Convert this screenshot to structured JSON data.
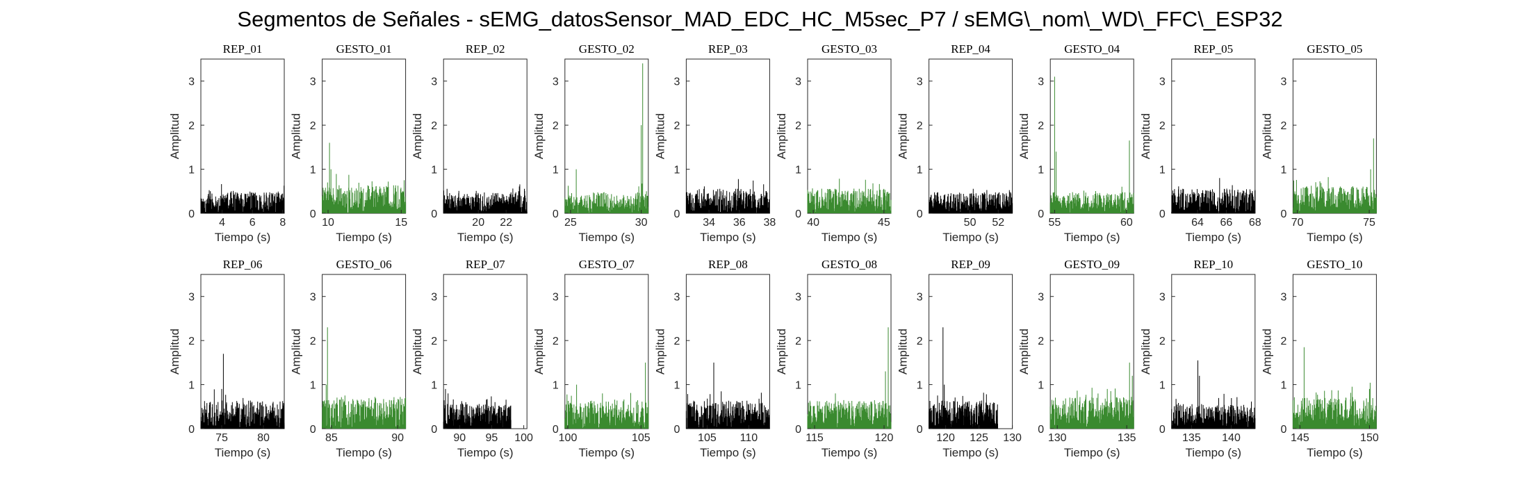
{
  "title": "Segmentos de Señales - sEMG_datosSensor_MAD_EDC_HC_M5sec_P7 / sEMG\\_nom\\_WD\\_FFC\\_ESP32",
  "colors": {
    "rep": "#000000",
    "gesto": "#3a8a2f",
    "axis": "#262626"
  },
  "chart_data": [
    {
      "type": "line",
      "title": "REP_01",
      "xlabel": "Tiempo (s)",
      "ylabel": "Amplitud",
      "xlim": [
        2.6,
        8.1
      ],
      "ylim": [
        0,
        3.5
      ],
      "xticks": [
        4,
        6,
        8
      ],
      "yticks": [
        0,
        1,
        2,
        3
      ],
      "color": "rep",
      "x_range": [
        2.6,
        8.1
      ],
      "base": 0.3,
      "spikes": []
    },
    {
      "type": "line",
      "title": "GESTO_01",
      "xlabel": "Tiempo (s)",
      "ylabel": "Amplitud",
      "xlim": [
        9.6,
        15.3
      ],
      "ylim": [
        0,
        3.5
      ],
      "xticks": [
        10,
        15
      ],
      "yticks": [
        0,
        1,
        2,
        3
      ],
      "color": "gesto",
      "x_range": [
        9.6,
        15.3
      ],
      "base": 0.4,
      "spikes": [
        [
          10.1,
          1.6
        ],
        [
          10.2,
          1.0
        ],
        [
          15.2,
          0.75
        ]
      ]
    },
    {
      "type": "line",
      "title": "REP_02",
      "xlabel": "Tiempo (s)",
      "ylabel": "Amplitud",
      "xlim": [
        17.5,
        23.5
      ],
      "ylim": [
        0,
        3.5
      ],
      "xticks": [
        20,
        22
      ],
      "yticks": [
        0,
        1,
        2,
        3
      ],
      "color": "rep",
      "x_range": [
        17.5,
        23.5
      ],
      "base": 0.3,
      "spikes": [
        [
          22.9,
          0.5
        ]
      ]
    },
    {
      "type": "line",
      "title": "GESTO_02",
      "xlabel": "Tiempo (s)",
      "ylabel": "Amplitud",
      "xlim": [
        24.6,
        30.5
      ],
      "ylim": [
        0,
        3.5
      ],
      "xticks": [
        25,
        30
      ],
      "yticks": [
        0,
        1,
        2,
        3
      ],
      "color": "gesto",
      "x_range": [
        24.6,
        30.5
      ],
      "base": 0.3,
      "spikes": [
        [
          25.4,
          1.0
        ],
        [
          30.1,
          3.4
        ],
        [
          30.0,
          2.0
        ]
      ]
    },
    {
      "type": "line",
      "title": "REP_03",
      "xlabel": "Tiempo (s)",
      "ylabel": "Amplitud",
      "xlim": [
        32.5,
        38.0
      ],
      "ylim": [
        0,
        3.5
      ],
      "xticks": [
        34,
        36,
        38
      ],
      "yticks": [
        0,
        1,
        2,
        3
      ],
      "color": "rep",
      "x_range": [
        32.5,
        38.0
      ],
      "base": 0.35,
      "spikes": []
    },
    {
      "type": "line",
      "title": "GESTO_03",
      "xlabel": "Tiempo (s)",
      "ylabel": "Amplitud",
      "xlim": [
        39.6,
        45.5
      ],
      "ylim": [
        0,
        3.5
      ],
      "xticks": [
        40,
        45
      ],
      "yticks": [
        0,
        1,
        2,
        3
      ],
      "color": "gesto",
      "x_range": [
        39.6,
        45.5
      ],
      "base": 0.35,
      "spikes": []
    },
    {
      "type": "line",
      "title": "REP_04",
      "xlabel": "Tiempo (s)",
      "ylabel": "Amplitud",
      "xlim": [
        47.1,
        53.0
      ],
      "ylim": [
        0,
        3.5
      ],
      "xticks": [
        50,
        52
      ],
      "yticks": [
        0,
        1,
        2,
        3
      ],
      "color": "rep",
      "x_range": [
        47.1,
        53.0
      ],
      "base": 0.3,
      "spikes": []
    },
    {
      "type": "line",
      "title": "GESTO_04",
      "xlabel": "Tiempo (s)",
      "ylabel": "Amplitud",
      "xlim": [
        54.7,
        60.5
      ],
      "ylim": [
        0,
        3.5
      ],
      "xticks": [
        55,
        60
      ],
      "yticks": [
        0,
        1,
        2,
        3
      ],
      "color": "gesto",
      "x_range": [
        54.7,
        60.5
      ],
      "base": 0.3,
      "spikes": [
        [
          55.0,
          3.1
        ],
        [
          55.1,
          1.4
        ],
        [
          60.2,
          1.65
        ]
      ]
    },
    {
      "type": "line",
      "title": "REP_05",
      "xlabel": "Tiempo (s)",
      "ylabel": "Amplitud",
      "xlim": [
        62.2,
        68.0
      ],
      "ylim": [
        0,
        3.5
      ],
      "xticks": [
        64,
        66,
        68
      ],
      "yticks": [
        0,
        1,
        2,
        3
      ],
      "color": "rep",
      "x_range": [
        62.2,
        68.0
      ],
      "base": 0.35,
      "spikes": [
        [
          62.4,
          0.55
        ]
      ]
    },
    {
      "type": "line",
      "title": "GESTO_05",
      "xlabel": "Tiempo (s)",
      "ylabel": "Amplitud",
      "xlim": [
        69.7,
        75.5
      ],
      "ylim": [
        0,
        3.5
      ],
      "xticks": [
        70,
        75
      ],
      "yticks": [
        0,
        1,
        2,
        3
      ],
      "color": "gesto",
      "x_range": [
        69.7,
        75.5
      ],
      "base": 0.4,
      "spikes": [
        [
          75.1,
          1.0
        ],
        [
          75.3,
          1.7
        ]
      ]
    },
    {
      "type": "line",
      "title": "REP_06",
      "xlabel": "Tiempo (s)",
      "ylabel": "Amplitud",
      "xlim": [
        72.5,
        82.5
      ],
      "ylim": [
        0,
        3.5
      ],
      "xticks": [
        75,
        80
      ],
      "yticks": [
        0,
        1,
        2,
        3
      ],
      "color": "rep",
      "x_range": [
        72.5,
        82.5
      ],
      "base": 0.4,
      "spikes": [
        [
          75.2,
          1.7
        ],
        [
          75.0,
          0.9
        ]
      ]
    },
    {
      "type": "line",
      "title": "GESTO_06",
      "xlabel": "Tiempo (s)",
      "ylabel": "Amplitud",
      "xlim": [
        84.3,
        90.6
      ],
      "ylim": [
        0,
        3.5
      ],
      "xticks": [
        85,
        90
      ],
      "yticks": [
        0,
        1,
        2,
        3
      ],
      "color": "gesto",
      "x_range": [
        84.3,
        90.6
      ],
      "base": 0.45,
      "spikes": [
        [
          84.7,
          2.3
        ],
        [
          84.6,
          1.0
        ]
      ]
    },
    {
      "type": "line",
      "title": "REP_07",
      "xlabel": "Tiempo (s)",
      "ylabel": "Amplitud",
      "xlim": [
        87.5,
        100.5
      ],
      "ylim": [
        0,
        3.5
      ],
      "xticks": [
        90,
        95,
        100
      ],
      "yticks": [
        0,
        1,
        2,
        3
      ],
      "color": "rep",
      "x_range": [
        87.5,
        98.0
      ],
      "base": 0.35,
      "spikes": [
        [
          87.8,
          0.9
        ],
        [
          88.2,
          0.8
        ]
      ]
    },
    {
      "type": "line",
      "title": "GESTO_07",
      "xlabel": "Tiempo (s)",
      "ylabel": "Amplitud",
      "xlim": [
        99.8,
        105.5
      ],
      "ylim": [
        0,
        3.5
      ],
      "xticks": [
        100,
        105
      ],
      "yticks": [
        0,
        1,
        2,
        3
      ],
      "color": "gesto",
      "x_range": [
        99.8,
        105.5
      ],
      "base": 0.4,
      "spikes": [
        [
          100.6,
          1.0
        ],
        [
          105.3,
          1.5
        ]
      ]
    },
    {
      "type": "line",
      "title": "REP_08",
      "xlabel": "Tiempo (s)",
      "ylabel": "Amplitud",
      "xlim": [
        102.5,
        112.5
      ],
      "ylim": [
        0,
        3.5
      ],
      "xticks": [
        105,
        110
      ],
      "yticks": [
        0,
        1,
        2,
        3
      ],
      "color": "rep",
      "x_range": [
        102.5,
        112.5
      ],
      "base": 0.4,
      "spikes": [
        [
          105.8,
          1.5
        ]
      ]
    },
    {
      "type": "line",
      "title": "GESTO_08",
      "xlabel": "Tiempo (s)",
      "ylabel": "Amplitud",
      "xlim": [
        114.5,
        120.5
      ],
      "ylim": [
        0,
        3.5
      ],
      "xticks": [
        115,
        120
      ],
      "yticks": [
        0,
        1,
        2,
        3
      ],
      "color": "gesto",
      "x_range": [
        114.5,
        120.5
      ],
      "base": 0.4,
      "spikes": [
        [
          116.5,
          0.8
        ],
        [
          120.3,
          2.3
        ],
        [
          120.1,
          1.3
        ]
      ]
    },
    {
      "type": "line",
      "title": "REP_09",
      "xlabel": "Tiempo (s)",
      "ylabel": "Amplitud",
      "xlim": [
        117.5,
        130.0
      ],
      "ylim": [
        0,
        3.5
      ],
      "xticks": [
        120,
        125,
        130
      ],
      "yticks": [
        0,
        1,
        2,
        3
      ],
      "color": "rep",
      "x_range": [
        117.5,
        127.8
      ],
      "base": 0.4,
      "spikes": [
        [
          119.6,
          2.3
        ],
        [
          119.8,
          1.0
        ]
      ]
    },
    {
      "type": "line",
      "title": "GESTO_09",
      "xlabel": "Tiempo (s)",
      "ylabel": "Amplitud",
      "xlim": [
        129.5,
        135.5
      ],
      "ylim": [
        0,
        3.5
      ],
      "xticks": [
        130,
        135
      ],
      "yticks": [
        0,
        1,
        2,
        3
      ],
      "color": "gesto",
      "x_range": [
        129.5,
        135.5
      ],
      "base": 0.45,
      "spikes": [
        [
          133.6,
          0.9
        ],
        [
          135.2,
          1.5
        ],
        [
          135.4,
          1.2
        ]
      ]
    },
    {
      "type": "line",
      "title": "REP_10",
      "xlabel": "Tiempo (s)",
      "ylabel": "Amplitud",
      "xlim": [
        132.5,
        143.0
      ],
      "ylim": [
        0,
        3.5
      ],
      "xticks": [
        135,
        140
      ],
      "yticks": [
        0,
        1,
        2,
        3
      ],
      "color": "rep",
      "x_range": [
        132.5,
        143.0
      ],
      "base": 0.35,
      "spikes": [
        [
          135.8,
          1.55
        ],
        [
          136.0,
          1.2
        ]
      ]
    },
    {
      "type": "line",
      "title": "GESTO_10",
      "xlabel": "Tiempo (s)",
      "ylabel": "Amplitud",
      "xlim": [
        144.5,
        150.5
      ],
      "ylim": [
        0,
        3.5
      ],
      "xticks": [
        145,
        150
      ],
      "yticks": [
        0,
        1,
        2,
        3
      ],
      "color": "gesto",
      "x_range": [
        144.5,
        150.5
      ],
      "base": 0.45,
      "spikes": [
        [
          145.3,
          1.85
        ],
        [
          150.0,
          0.9
        ]
      ]
    }
  ]
}
